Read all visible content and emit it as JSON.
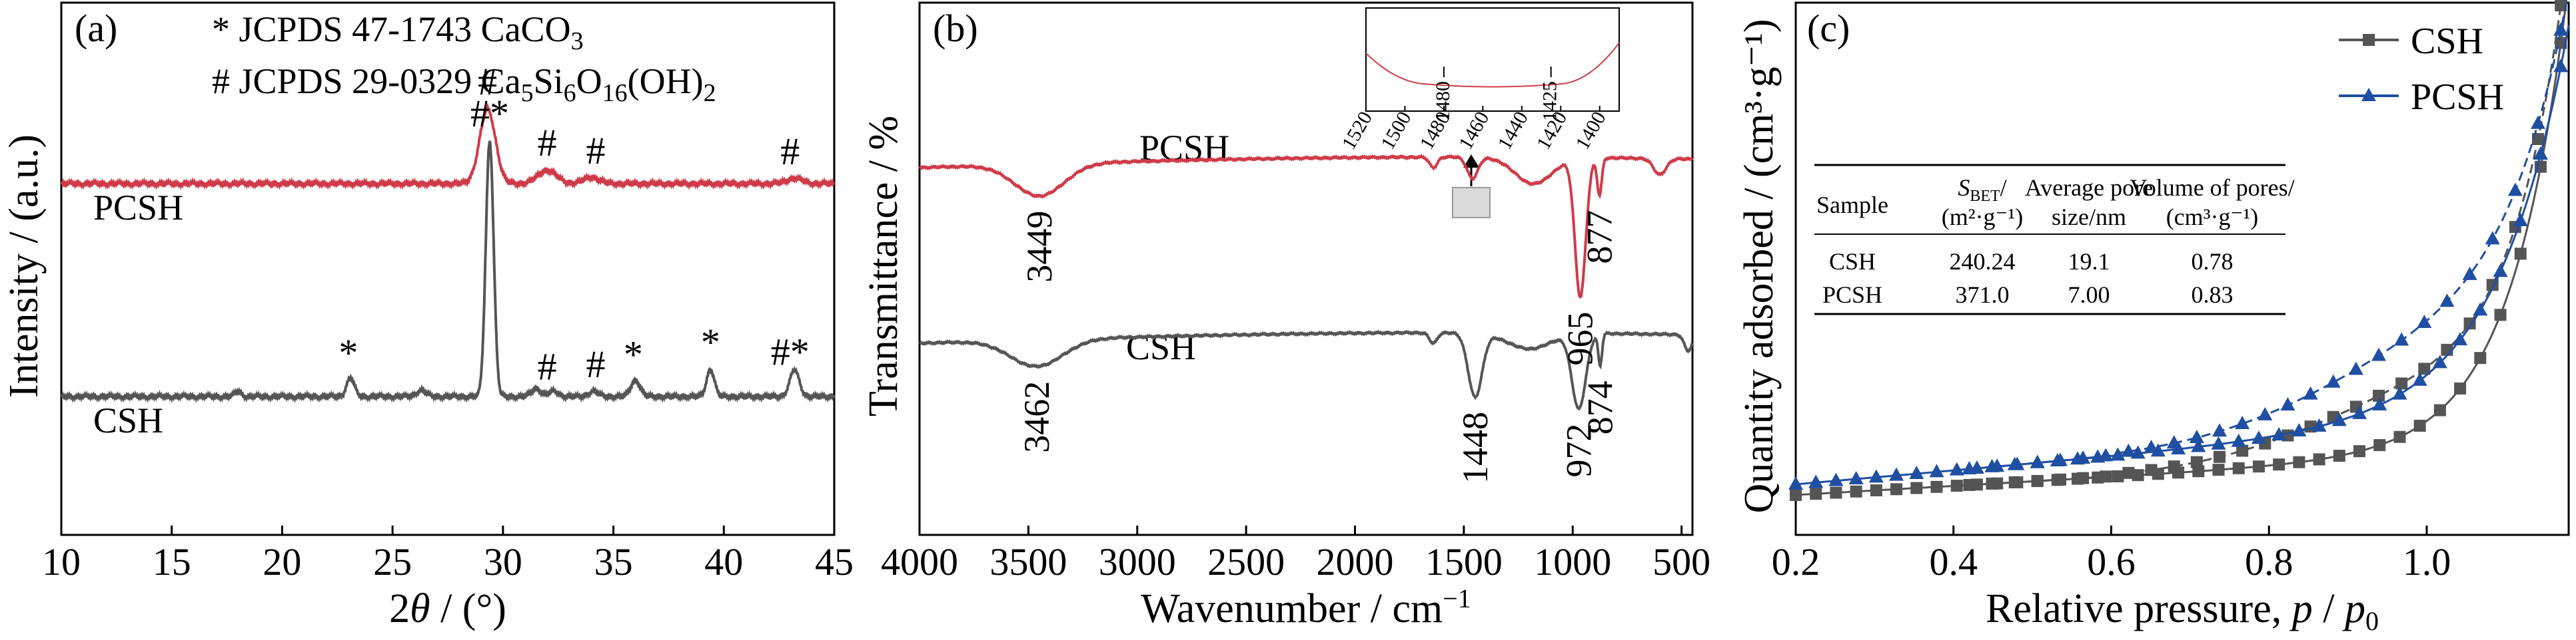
{
  "chart_data": [
    {
      "panel": "(a)",
      "type": "line",
      "xlabel_main": "2",
      "xlabel_theta": "θ",
      "xlabel_unit": " / (°)",
      "ylabel": "Intensity / (a.u.)",
      "xlim": [
        10,
        45
      ],
      "xticks": [
        "10",
        "15",
        "20",
        "25",
        "30",
        "35",
        "40",
        "45"
      ],
      "legend_lines": [
        {
          "text": "* JCPDS 47-1743 CaCO",
          "sub": "3",
          "tail": ""
        },
        {
          "text": "# JCPDS 29-0329 Ca",
          "sub": "5",
          "mid": "Si",
          "sub2": "6",
          "mid2": "O",
          "sub3": "16",
          "tail": "(OH)",
          "sub4": "2"
        }
      ],
      "series": [
        {
          "name": "PCSH",
          "color": "#d03a48",
          "baseline": 0.66,
          "peaks": [
            [
              29.3,
              0.14,
              0.5
            ],
            [
              32.0,
              0.025,
              0.6
            ],
            [
              34.0,
              0.012,
              0.5
            ],
            [
              43.2,
              0.01,
              0.5
            ]
          ],
          "markers": [
            {
              "x": 29.3,
              "label": "#"
            },
            {
              "x": 32.0,
              "label": "#"
            },
            {
              "x": 34.2,
              "label": "#"
            },
            {
              "x": 43.0,
              "label": "#"
            }
          ]
        },
        {
          "name": "CSH",
          "color": "#555555",
          "baseline": 0.26,
          "peaks": [
            [
              29.4,
              0.48,
              0.25
            ],
            [
              23.1,
              0.035,
              0.25
            ],
            [
              26.3,
              0.012,
              0.3
            ],
            [
              31.5,
              0.015,
              0.3
            ],
            [
              32.3,
              0.01,
              0.3
            ],
            [
              34.1,
              0.01,
              0.3
            ],
            [
              36.0,
              0.03,
              0.3
            ],
            [
              39.4,
              0.05,
              0.25
            ],
            [
              43.2,
              0.05,
              0.3
            ],
            [
              18.0,
              0.01,
              0.2
            ]
          ],
          "markers": [
            {
              "x": 23.0,
              "label": "*"
            },
            {
              "x": 29.4,
              "label": "#*"
            },
            {
              "x": 32.0,
              "label": "#"
            },
            {
              "x": 34.2,
              "label": "#"
            },
            {
              "x": 35.9,
              "label": "*"
            },
            {
              "x": 39.4,
              "label": "*"
            },
            {
              "x": 43.0,
              "label": "#*"
            }
          ]
        }
      ]
    },
    {
      "panel": "(b)",
      "type": "line",
      "xlabel_main": "Wavenumber / cm",
      "xlabel_sup": "−1",
      "ylabel": "Transmittance / %",
      "xlim": [
        4000,
        450
      ],
      "xticks": [
        "4000",
        "3500",
        "3000",
        "2500",
        "2000",
        "1500",
        "1000",
        "500"
      ],
      "xtick_values": [
        4000,
        3500,
        3000,
        2500,
        2000,
        1500,
        1000,
        500
      ],
      "series": [
        {
          "name": "PCSH",
          "color": "#d03a48",
          "baseline": 0.69,
          "features": [
            [
              3449,
              -0.06,
              160
            ],
            [
              1640,
              -0.02,
              25
            ],
            [
              1460,
              -0.04,
              35
            ],
            [
              965,
              -0.26,
              35
            ],
            [
              877,
              -0.07,
              15
            ],
            [
              1180,
              -0.05,
              120
            ],
            [
              600,
              -0.03,
              40
            ]
          ],
          "labels": [
            {
              "x": 3449,
              "text": "3449"
            },
            {
              "x": 965,
              "text": "965"
            },
            {
              "x": 877,
              "text": "877"
            }
          ]
        },
        {
          "name": "CSH",
          "color": "#555555",
          "baseline": 0.36,
          "features": [
            [
              3462,
              -0.05,
              170
            ],
            [
              1640,
              -0.02,
              25
            ],
            [
              1448,
              -0.12,
              45
            ],
            [
              972,
              -0.14,
              45
            ],
            [
              874,
              -0.06,
              12
            ],
            [
              1200,
              -0.03,
              140
            ],
            [
              470,
              -0.03,
              25
            ]
          ],
          "labels": [
            {
              "x": 3462,
              "text": "3462"
            },
            {
              "x": 1448,
              "text": "1448"
            },
            {
              "x": 972,
              "text": "972"
            },
            {
              "x": 874,
              "text": "874"
            }
          ]
        }
      ],
      "inset": {
        "xlim": [
          1520,
          1390
        ],
        "xticks": [
          "1520",
          "1500",
          "1480",
          "1460",
          "1440",
          "1420",
          "1400"
        ],
        "xtick_values": [
          1520,
          1500,
          1480,
          1460,
          1440,
          1420,
          1400
        ],
        "annotations": [
          "1480",
          "1425"
        ],
        "annotation_values": [
          1480,
          1425
        ],
        "color": "#d03a48"
      }
    },
    {
      "panel": "(c)",
      "type": "line",
      "xlabel_main": "Relative pressure, ",
      "xlabel_p": "p",
      "xlabel_slash": " / ",
      "xlabel_p0": "p",
      "xlabel_sub": "0",
      "ylabel": "Quantity adsorbed / (cm³·g⁻¹)",
      "xlim": [
        0.2,
        1.18
      ],
      "xticks": [
        "0.2",
        "0.4",
        "0.6",
        "0.8",
        "1.0"
      ],
      "xtick_values": [
        0.2,
        0.4,
        0.6,
        0.8,
        1.0
      ],
      "legend": [
        {
          "name": "CSH",
          "color": "#555555",
          "marker": "square"
        },
        {
          "name": "PCSH",
          "color": "#1f4fa3",
          "marker": "triangle"
        }
      ],
      "series": [
        {
          "name": "CSH",
          "color": "#555555",
          "marker": "square",
          "v0": 0.075,
          "slope": 0.085,
          "amp": 0.9,
          "k": 14,
          "hyst": 0.1
        },
        {
          "name": "PCSH",
          "color": "#1f4fa3",
          "marker": "triangle",
          "v0": 0.095,
          "slope": 0.13,
          "amp": 0.75,
          "k": 11,
          "hyst": 0.1
        }
      ],
      "table": {
        "headers": [
          {
            "main": "Sample"
          },
          {
            "italic": "S",
            "sub": "BET",
            "main": "/",
            "line2": "(m²·g⁻¹)"
          },
          {
            "main": "Average pore",
            "line2": "size/nm"
          },
          {
            "main": "Volume of pores/",
            "line2": "(cm³·g⁻¹)"
          }
        ],
        "rows": [
          [
            "CSH",
            "240.24",
            "19.1",
            "0.78"
          ],
          [
            "PCSH",
            "371.0",
            "7.00",
            "0.83"
          ]
        ]
      }
    }
  ]
}
